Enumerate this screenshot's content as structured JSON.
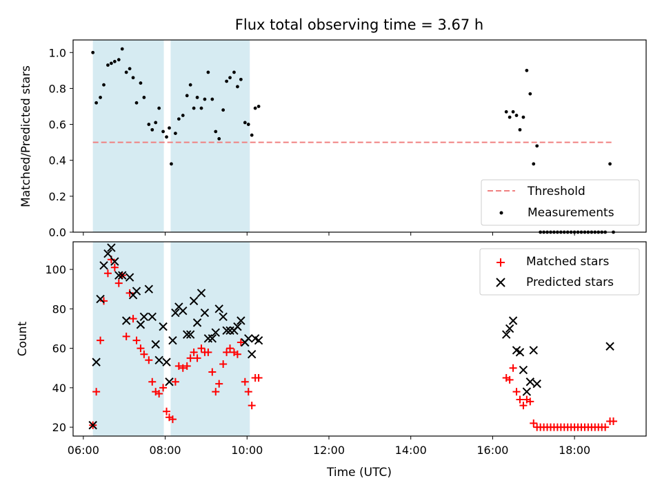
{
  "chart_data": {
    "title": "Flux total observing time = 3.67 h",
    "xlabel": "Time (UTC)",
    "xlim": [
      "05:45",
      "19:45"
    ],
    "xticks": [
      "06:00",
      "08:00",
      "10:00",
      "12:00",
      "14:00",
      "16:00",
      "18:00"
    ],
    "shaded_intervals": [
      [
        "06:14",
        "07:58"
      ],
      [
        "08:08",
        "10:04"
      ]
    ],
    "shade_color": "#add8e6",
    "top": {
      "type": "scatter",
      "ylabel": "Matched/Predicted stars",
      "ylim": [
        0,
        1.07
      ],
      "yticks": [
        "0.0",
        "0.2",
        "0.4",
        "0.6",
        "0.8",
        "1.0"
      ],
      "threshold": {
        "name": "Threshold",
        "value": 0.5,
        "x_range": [
          "06:14",
          "18:55"
        ],
        "color": "#f08080"
      },
      "series": [
        {
          "name": "Measurements",
          "color": "#000000",
          "points": [
            [
              "06:14",
              1.0
            ],
            [
              "06:19",
              0.72
            ],
            [
              "06:25",
              0.75
            ],
            [
              "06:30",
              0.82
            ],
            [
              "06:36",
              0.93
            ],
            [
              "06:41",
              0.94
            ],
            [
              "06:46",
              0.95
            ],
            [
              "06:52",
              0.96
            ],
            [
              "06:57",
              1.02
            ],
            [
              "07:03",
              0.89
            ],
            [
              "07:08",
              0.91
            ],
            [
              "07:13",
              0.86
            ],
            [
              "07:18",
              0.72
            ],
            [
              "07:24",
              0.83
            ],
            [
              "07:29",
              0.75
            ],
            [
              "07:36",
              0.6
            ],
            [
              "07:41",
              0.57
            ],
            [
              "07:46",
              0.61
            ],
            [
              "07:51",
              0.69
            ],
            [
              "07:57",
              0.56
            ],
            [
              "08:02",
              0.53
            ],
            [
              "08:06",
              0.58
            ],
            [
              "08:09",
              0.38
            ],
            [
              "08:15",
              0.55
            ],
            [
              "08:20",
              0.63
            ],
            [
              "08:26",
              0.65
            ],
            [
              "08:32",
              0.76
            ],
            [
              "08:37",
              0.82
            ],
            [
              "08:42",
              0.69
            ],
            [
              "08:47",
              0.75
            ],
            [
              "08:53",
              0.69
            ],
            [
              "08:58",
              0.74
            ],
            [
              "09:03",
              0.89
            ],
            [
              "09:09",
              0.74
            ],
            [
              "09:14",
              0.56
            ],
            [
              "09:19",
              0.52
            ],
            [
              "09:25",
              0.68
            ],
            [
              "09:30",
              0.84
            ],
            [
              "09:35",
              0.86
            ],
            [
              "09:41",
              0.89
            ],
            [
              "09:46",
              0.81
            ],
            [
              "09:51",
              0.85
            ],
            [
              "09:57",
              0.61
            ],
            [
              "10:02",
              0.6
            ],
            [
              "10:07",
              0.54
            ],
            [
              "10:12",
              0.69
            ],
            [
              "10:17",
              0.7
            ],
            [
              "16:20",
              0.67
            ],
            [
              "16:25",
              0.64
            ],
            [
              "16:30",
              0.67
            ],
            [
              "16:35",
              0.65
            ],
            [
              "16:40",
              0.57
            ],
            [
              "16:45",
              0.64
            ],
            [
              "16:50",
              0.9
            ],
            [
              "16:55",
              0.77
            ],
            [
              "17:00",
              0.38
            ],
            [
              "17:05",
              0.48
            ],
            [
              "18:52",
              0.38
            ],
            [
              "17:10",
              0.0
            ],
            [
              "17:15",
              0.0
            ],
            [
              "17:20",
              0.0
            ],
            [
              "17:25",
              0.0
            ],
            [
              "17:30",
              0.0
            ],
            [
              "17:35",
              0.0
            ],
            [
              "17:40",
              0.0
            ],
            [
              "17:45",
              0.0
            ],
            [
              "17:50",
              0.0
            ],
            [
              "17:55",
              0.0
            ],
            [
              "18:00",
              0.0
            ],
            [
              "18:05",
              0.0
            ],
            [
              "18:10",
              0.0
            ],
            [
              "18:15",
              0.0
            ],
            [
              "18:20",
              0.0
            ],
            [
              "18:25",
              0.0
            ],
            [
              "18:30",
              0.0
            ],
            [
              "18:35",
              0.0
            ],
            [
              "18:40",
              0.0
            ],
            [
              "18:45",
              0.0
            ],
            [
              "18:57",
              0.0
            ]
          ]
        }
      ],
      "legend": {
        "position": "lower right",
        "entries": [
          "Threshold",
          "Measurements"
        ]
      }
    },
    "bottom": {
      "type": "scatter",
      "ylabel": "Count",
      "ylim": [
        15.5,
        114
      ],
      "yticks": [
        "20",
        "40",
        "60",
        "80",
        "100"
      ],
      "series": [
        {
          "name": "Matched stars",
          "marker": "+",
          "color": "#ff0000",
          "points": [
            [
              "06:14",
              21
            ],
            [
              "06:19",
              38
            ],
            [
              "06:25",
              64
            ],
            [
              "06:30",
              84
            ],
            [
              "06:36",
              98
            ],
            [
              "06:41",
              105
            ],
            [
              "06:46",
              101
            ],
            [
              "06:52",
              93
            ],
            [
              "06:57",
              97
            ],
            [
              "07:03",
              66
            ],
            [
              "07:08",
              88
            ],
            [
              "07:13",
              75
            ],
            [
              "07:18",
              64
            ],
            [
              "07:24",
              60
            ],
            [
              "07:29",
              57
            ],
            [
              "07:36",
              54
            ],
            [
              "07:41",
              43
            ],
            [
              "07:46",
              38
            ],
            [
              "07:51",
              37
            ],
            [
              "07:57",
              40
            ],
            [
              "08:02",
              28
            ],
            [
              "08:06",
              25
            ],
            [
              "08:11",
              24
            ],
            [
              "08:15",
              43
            ],
            [
              "08:20",
              51
            ],
            [
              "08:26",
              50
            ],
            [
              "08:32",
              51
            ],
            [
              "08:37",
              55
            ],
            [
              "08:42",
              58
            ],
            [
              "08:47",
              55
            ],
            [
              "08:53",
              60
            ],
            [
              "08:58",
              58
            ],
            [
              "09:03",
              58
            ],
            [
              "09:09",
              48
            ],
            [
              "09:14",
              38
            ],
            [
              "09:19",
              42
            ],
            [
              "09:25",
              52
            ],
            [
              "09:30",
              58
            ],
            [
              "09:35",
              60
            ],
            [
              "09:41",
              58
            ],
            [
              "09:46",
              57
            ],
            [
              "09:51",
              63
            ],
            [
              "09:57",
              43
            ],
            [
              "10:02",
              38
            ],
            [
              "10:07",
              31
            ],
            [
              "10:12",
              45
            ],
            [
              "10:17",
              45
            ],
            [
              "16:20",
              45
            ],
            [
              "16:25",
              44
            ],
            [
              "16:30",
              50
            ],
            [
              "16:35",
              38
            ],
            [
              "16:40",
              34
            ],
            [
              "16:45",
              31
            ],
            [
              "16:50",
              34
            ],
            [
              "16:55",
              33
            ],
            [
              "17:00",
              22
            ],
            [
              "17:05",
              20
            ],
            [
              "17:10",
              20
            ],
            [
              "17:15",
              20
            ],
            [
              "17:20",
              20
            ],
            [
              "17:25",
              20
            ],
            [
              "17:30",
              20
            ],
            [
              "17:35",
              20
            ],
            [
              "17:40",
              20
            ],
            [
              "17:45",
              20
            ],
            [
              "17:50",
              20
            ],
            [
              "17:55",
              20
            ],
            [
              "18:00",
              20
            ],
            [
              "18:05",
              20
            ],
            [
              "18:10",
              20
            ],
            [
              "18:15",
              20
            ],
            [
              "18:20",
              20
            ],
            [
              "18:25",
              20
            ],
            [
              "18:30",
              20
            ],
            [
              "18:35",
              20
            ],
            [
              "18:40",
              20
            ],
            [
              "18:45",
              20
            ],
            [
              "18:52",
              23
            ],
            [
              "18:57",
              23
            ]
          ]
        },
        {
          "name": "Predicted stars",
          "marker": "x",
          "color": "#000000",
          "points": [
            [
              "06:14",
              21
            ],
            [
              "06:19",
              53
            ],
            [
              "06:25",
              85
            ],
            [
              "06:30",
              102
            ],
            [
              "06:36",
              108
            ],
            [
              "06:41",
              111
            ],
            [
              "06:46",
              104
            ],
            [
              "06:52",
              97
            ],
            [
              "06:57",
              97
            ],
            [
              "07:03",
              74
            ],
            [
              "07:08",
              96
            ],
            [
              "07:13",
              87
            ],
            [
              "07:18",
              89
            ],
            [
              "07:24",
              72
            ],
            [
              "07:29",
              76
            ],
            [
              "07:36",
              90
            ],
            [
              "07:41",
              76
            ],
            [
              "07:46",
              62
            ],
            [
              "07:51",
              54
            ],
            [
              "07:57",
              71
            ],
            [
              "08:02",
              53
            ],
            [
              "08:06",
              43
            ],
            [
              "08:11",
              64
            ],
            [
              "08:15",
              78
            ],
            [
              "08:20",
              81
            ],
            [
              "08:26",
              79
            ],
            [
              "08:32",
              67
            ],
            [
              "08:37",
              67
            ],
            [
              "08:42",
              84
            ],
            [
              "08:47",
              73
            ],
            [
              "08:53",
              88
            ],
            [
              "08:58",
              78
            ],
            [
              "09:03",
              65
            ],
            [
              "09:09",
              65
            ],
            [
              "09:14",
              68
            ],
            [
              "09:19",
              80
            ],
            [
              "09:25",
              76
            ],
            [
              "09:30",
              69
            ],
            [
              "09:35",
              69
            ],
            [
              "09:41",
              69
            ],
            [
              "09:46",
              71
            ],
            [
              "09:51",
              74
            ],
            [
              "09:57",
              63
            ],
            [
              "10:02",
              65
            ],
            [
              "10:07",
              57
            ],
            [
              "10:12",
              65
            ],
            [
              "10:17",
              64
            ],
            [
              "16:20",
              67
            ],
            [
              "16:25",
              70
            ],
            [
              "16:30",
              74
            ],
            [
              "16:35",
              59
            ],
            [
              "16:40",
              58
            ],
            [
              "16:45",
              49
            ],
            [
              "16:50",
              38
            ],
            [
              "16:55",
              43
            ],
            [
              "17:00",
              59
            ],
            [
              "17:05",
              42
            ],
            [
              "18:52",
              61
            ]
          ]
        }
      ],
      "legend": {
        "position": "upper right",
        "entries": [
          "Matched stars",
          "Predicted stars"
        ]
      }
    }
  }
}
